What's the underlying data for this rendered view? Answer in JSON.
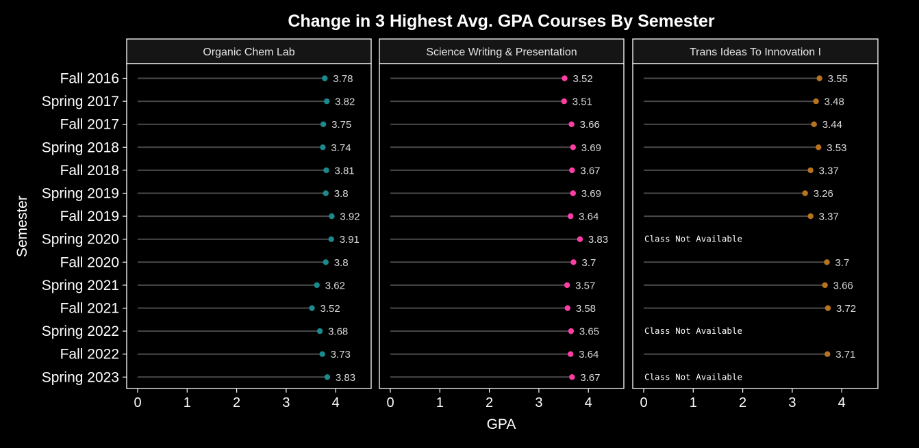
{
  "chart_data": {
    "type": "lollipop",
    "title": "Change in 3 Highest Avg. GPA Courses By Semester",
    "xlabel": "GPA",
    "ylabel": "Semester",
    "xlim": [
      0,
      4.7
    ],
    "xticks": [
      0,
      1,
      2,
      3,
      4
    ],
    "grid": false,
    "background": "#000000",
    "panel_background": "#000000",
    "strip_background": "#151515",
    "text_color": "#ffffff",
    "label_color": "#d9d9d9",
    "categories": [
      "Fall 2016",
      "Spring 2017",
      "Fall 2017",
      "Spring 2018",
      "Fall 2018",
      "Spring 2019",
      "Fall 2019",
      "Spring 2020",
      "Fall 2020",
      "Spring 2021",
      "Fall 2021",
      "Spring 2022",
      "Fall 2022",
      "Spring 2023"
    ],
    "missing_label": "Class Not Available",
    "series": [
      {
        "name": "Organic Chem Lab",
        "color": "#1a8a8f",
        "values": [
          3.78,
          3.82,
          3.75,
          3.74,
          3.81,
          3.8,
          3.92,
          3.91,
          3.8,
          3.62,
          3.52,
          3.68,
          3.73,
          3.83
        ],
        "labels": [
          "3.78",
          "3.82",
          "3.75",
          "3.74",
          "3.81",
          "3.8",
          "3.92",
          "3.91",
          "3.8",
          "3.62",
          "3.52",
          "3.68",
          "3.73",
          "3.83"
        ]
      },
      {
        "name": "Science Writing & Presentation",
        "color": "#ff3ea5",
        "values": [
          3.52,
          3.51,
          3.66,
          3.69,
          3.67,
          3.69,
          3.64,
          3.83,
          3.7,
          3.57,
          3.58,
          3.65,
          3.64,
          3.67
        ],
        "labels": [
          "3.52",
          "3.51",
          "3.66",
          "3.69",
          "3.67",
          "3.69",
          "3.64",
          "3.83",
          "3.7",
          "3.57",
          "3.58",
          "3.65",
          "3.64",
          "3.67"
        ]
      },
      {
        "name": "Trans Ideas To Innovation I",
        "color": "#b8731f",
        "values": [
          3.55,
          3.48,
          3.44,
          3.53,
          3.37,
          3.26,
          3.37,
          null,
          3.7,
          3.66,
          3.72,
          null,
          3.71,
          null
        ],
        "labels": [
          "3.55",
          "3.48",
          "3.44",
          "3.53",
          "3.37",
          "3.26",
          "3.37",
          null,
          "3.7",
          "3.66",
          "3.72",
          null,
          "3.71",
          null
        ]
      }
    ]
  }
}
